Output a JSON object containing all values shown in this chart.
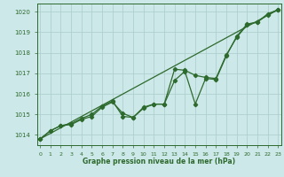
{
  "x": [
    0,
    1,
    2,
    3,
    4,
    5,
    6,
    7,
    8,
    9,
    10,
    11,
    12,
    13,
    14,
    15,
    16,
    17,
    18,
    19,
    20,
    21,
    22,
    23
  ],
  "line1": [
    1013.8,
    1014.2,
    1014.45,
    1014.5,
    1014.75,
    1014.9,
    1015.35,
    1015.6,
    1015.05,
    1014.85,
    1015.35,
    1015.5,
    1015.5,
    1016.65,
    1017.1,
    1015.5,
    1016.75,
    1016.7,
    1017.85,
    1018.8,
    1019.4,
    1019.5,
    1019.9,
    1020.1
  ],
  "line2": [
    1013.8,
    1014.2,
    1014.45,
    1014.55,
    1014.8,
    1015.0,
    1015.4,
    1015.65,
    1014.9,
    1014.85,
    1015.3,
    1015.5,
    1015.5,
    1017.2,
    1017.15,
    1016.9,
    1016.8,
    1016.75,
    1017.9,
    1018.75,
    1019.35,
    1019.5,
    1019.85,
    1020.1
  ],
  "trend_x": [
    0,
    23
  ],
  "trend_y": [
    1013.8,
    1020.1
  ],
  "line_color": "#2d6a2d",
  "bg_color": "#cde8e8",
  "grid_color": "#aacccc",
  "xlabel": "Graphe pression niveau de la mer (hPa)",
  "ylim": [
    1013.5,
    1020.4
  ],
  "xlim": [
    -0.3,
    23.3
  ],
  "yticks": [
    1014,
    1015,
    1016,
    1017,
    1018,
    1019,
    1020
  ],
  "xticks": [
    0,
    1,
    2,
    3,
    4,
    5,
    6,
    7,
    8,
    9,
    10,
    11,
    12,
    13,
    14,
    15,
    16,
    17,
    18,
    19,
    20,
    21,
    22,
    23
  ]
}
